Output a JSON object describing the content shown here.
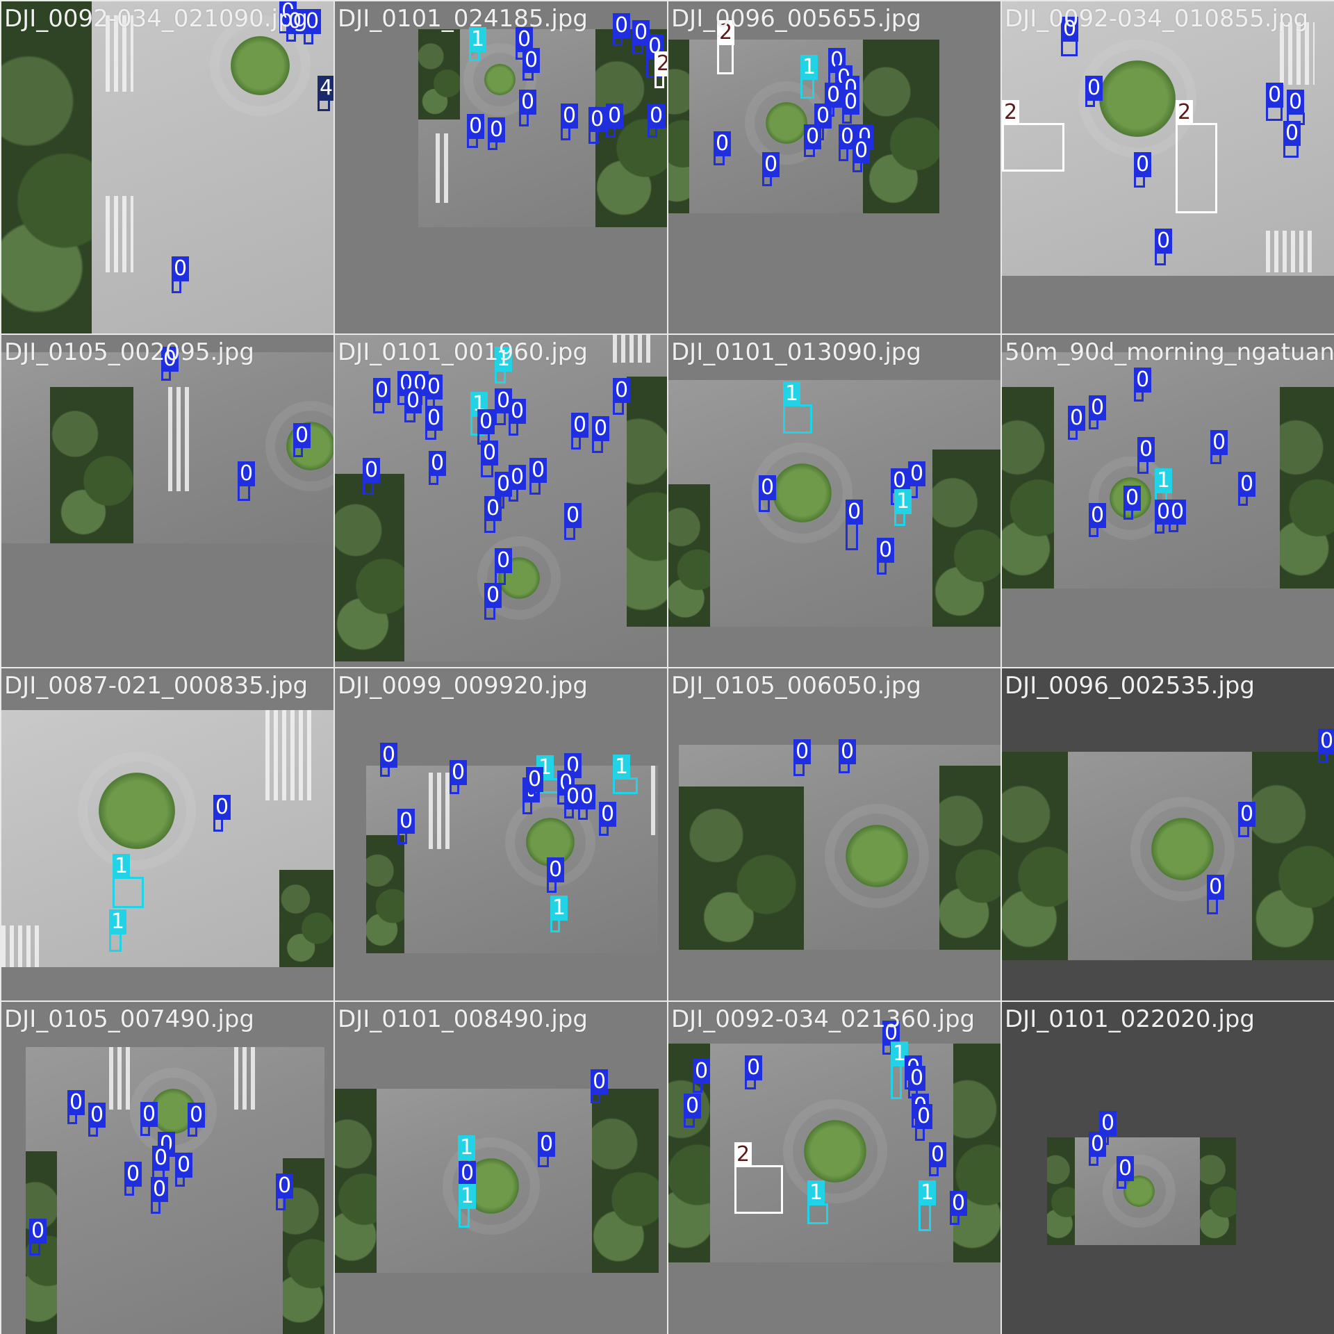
{
  "colors": {
    "class_0": "#1f2fe0",
    "class_1": "#22d3e6",
    "class_2": "#ffffff",
    "class_4": "#1a2a6a",
    "label_text": "#f0f0f0",
    "pad_gray": "#7c7c7c"
  },
  "tiles": [
    {
      "filename": "DJI_0092-034_021090.jpg",
      "boxes": [
        {
          "cls": "0"
        },
        {
          "cls": "0"
        },
        {
          "cls": "0"
        },
        {
          "cls": "4"
        },
        {
          "cls": "0"
        }
      ]
    },
    {
      "filename": "DJI_0101_024185.jpg",
      "boxes": [
        {
          "cls": "1"
        },
        {
          "cls": "0"
        },
        {
          "cls": "0"
        },
        {
          "cls": "0"
        },
        {
          "cls": "0"
        },
        {
          "cls": "0"
        },
        {
          "cls": "2"
        },
        {
          "cls": "0"
        },
        {
          "cls": "0"
        },
        {
          "cls": "0"
        },
        {
          "cls": "0"
        },
        {
          "cls": "0"
        },
        {
          "cls": "0"
        },
        {
          "cls": "0"
        },
        {
          "cls": "0"
        }
      ]
    },
    {
      "filename": "DJI_0096_005655.jpg",
      "boxes": [
        {
          "cls": "2"
        },
        {
          "cls": "1"
        },
        {
          "cls": "0"
        },
        {
          "cls": "0"
        },
        {
          "cls": "0"
        },
        {
          "cls": "0"
        },
        {
          "cls": "0"
        },
        {
          "cls": "0"
        },
        {
          "cls": "0"
        },
        {
          "cls": "0"
        },
        {
          "cls": "0"
        },
        {
          "cls": "0"
        },
        {
          "cls": "0"
        },
        {
          "cls": "0"
        }
      ]
    },
    {
      "filename": "DJI_0092-034_010855.jpg",
      "boxes": [
        {
          "cls": "0"
        },
        {
          "cls": "0"
        },
        {
          "cls": "2"
        },
        {
          "cls": "2"
        },
        {
          "cls": "0"
        },
        {
          "cls": "0"
        },
        {
          "cls": "0"
        },
        {
          "cls": "0"
        },
        {
          "cls": "0"
        }
      ]
    },
    {
      "filename": "DJI_0105_002095.jpg",
      "boxes": [
        {
          "cls": "0"
        },
        {
          "cls": "0"
        },
        {
          "cls": "0"
        }
      ]
    },
    {
      "filename": "DJI_0101_001960.jpg",
      "boxes": [
        {
          "cls": "1"
        },
        {
          "cls": "1"
        },
        {
          "cls": "0"
        },
        {
          "cls": "0"
        },
        {
          "cls": "0"
        },
        {
          "cls": "0"
        },
        {
          "cls": "0"
        },
        {
          "cls": "0"
        },
        {
          "cls": "0"
        },
        {
          "cls": "0"
        },
        {
          "cls": "0"
        },
        {
          "cls": "0"
        },
        {
          "cls": "0"
        },
        {
          "cls": "0"
        },
        {
          "cls": "0"
        },
        {
          "cls": "0"
        },
        {
          "cls": "0"
        },
        {
          "cls": "0"
        },
        {
          "cls": "0"
        },
        {
          "cls": "0"
        },
        {
          "cls": "0"
        },
        {
          "cls": "0"
        },
        {
          "cls": "0"
        },
        {
          "cls": "0"
        }
      ]
    },
    {
      "filename": "DJI_0101_013090.jpg",
      "boxes": [
        {
          "cls": "1"
        },
        {
          "cls": "0"
        },
        {
          "cls": "0"
        },
        {
          "cls": "0"
        },
        {
          "cls": "1"
        },
        {
          "cls": "0"
        },
        {
          "cls": "0"
        }
      ]
    },
    {
      "filename": "50m_90d_morning_ngatuan",
      "boxes": [
        {
          "cls": "0"
        },
        {
          "cls": "0"
        },
        {
          "cls": "0"
        },
        {
          "cls": "0"
        },
        {
          "cls": "0"
        },
        {
          "cls": "0"
        },
        {
          "cls": "1"
        },
        {
          "cls": "0"
        },
        {
          "cls": "0"
        },
        {
          "cls": "0"
        },
        {
          "cls": "0"
        }
      ]
    },
    {
      "filename": "DJI_0087-021_000835.jpg",
      "boxes": [
        {
          "cls": "0"
        },
        {
          "cls": "1"
        },
        {
          "cls": "1"
        }
      ]
    },
    {
      "filename": "DJI_0099_009920.jpg",
      "boxes": [
        {
          "cls": "0"
        },
        {
          "cls": "0"
        },
        {
          "cls": "1"
        },
        {
          "cls": "0"
        },
        {
          "cls": "1"
        },
        {
          "cls": "0"
        },
        {
          "cls": "0"
        },
        {
          "cls": "0"
        },
        {
          "cls": "0"
        },
        {
          "cls": "0"
        },
        {
          "cls": "0"
        },
        {
          "cls": "0"
        },
        {
          "cls": "0"
        },
        {
          "cls": "1"
        }
      ]
    },
    {
      "filename": "DJI_0105_006050.jpg",
      "boxes": [
        {
          "cls": "0"
        },
        {
          "cls": "0"
        }
      ]
    },
    {
      "filename": "DJI_0096_002535.jpg",
      "boxes": [
        {
          "cls": "0"
        },
        {
          "cls": "0"
        },
        {
          "cls": "0"
        }
      ]
    },
    {
      "filename": "DJI_0105_007490.jpg",
      "boxes": [
        {
          "cls": "0"
        },
        {
          "cls": "0"
        },
        {
          "cls": "0"
        },
        {
          "cls": "0"
        },
        {
          "cls": "0"
        },
        {
          "cls": "0"
        },
        {
          "cls": "0"
        },
        {
          "cls": "0"
        },
        {
          "cls": "0"
        },
        {
          "cls": "0"
        },
        {
          "cls": "0"
        },
        {
          "cls": "0"
        }
      ]
    },
    {
      "filename": "DJI_0101_008490.jpg",
      "boxes": [
        {
          "cls": "0"
        },
        {
          "cls": "1"
        },
        {
          "cls": "0"
        },
        {
          "cls": "0"
        },
        {
          "cls": "1"
        }
      ]
    },
    {
      "filename": "DJI_0092-034_021360.jpg",
      "boxes": [
        {
          "cls": "0"
        },
        {
          "cls": "1"
        },
        {
          "cls": "0"
        },
        {
          "cls": "0"
        },
        {
          "cls": "0"
        },
        {
          "cls": "0"
        },
        {
          "cls": "0"
        },
        {
          "cls": "0"
        },
        {
          "cls": "0"
        },
        {
          "cls": "0"
        },
        {
          "cls": "2"
        },
        {
          "cls": "1"
        },
        {
          "cls": "1"
        },
        {
          "cls": "0"
        }
      ]
    },
    {
      "filename": "DJI_0101_022020.jpg",
      "boxes": [
        {
          "cls": "0"
        },
        {
          "cls": "0"
        },
        {
          "cls": "0"
        }
      ]
    }
  ]
}
